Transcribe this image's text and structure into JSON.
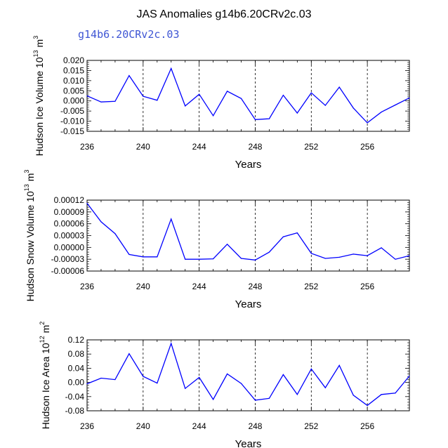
{
  "title": "JAS Anomalies g14b6.20CRv2c.03",
  "case_label": "g14b6.20CRv2c.03",
  "colors": {
    "series": "#0000ff",
    "case_label": "#3f56d4",
    "axis": "#000000"
  },
  "chart_data": [
    {
      "type": "line",
      "title": "",
      "ylabel_parts": {
        "base": "Hudson Ice Volume 10",
        "exp": "13",
        "unit": " m",
        "unit_exp": "3"
      },
      "xlabel": "Years",
      "x": [
        236,
        237,
        238,
        239,
        240,
        241,
        242,
        243,
        244,
        245,
        246,
        247,
        248,
        249,
        250,
        251,
        252,
        253,
        254,
        255,
        256,
        257,
        258,
        259
      ],
      "values": [
        0.0025,
        -0.0005,
        -0.0002,
        0.0125,
        0.0023,
        0.0003,
        0.016,
        -0.0025,
        0.0033,
        -0.0073,
        0.0048,
        0.0012,
        -0.0092,
        -0.0088,
        0.0028,
        -0.006,
        0.004,
        -0.0022,
        0.0068,
        -0.0035,
        -0.0108,
        -0.0055,
        -0.002,
        0.0015
      ],
      "xlim": [
        236,
        259
      ],
      "ylim": [
        -0.015,
        0.02
      ],
      "xticks": [
        236,
        240,
        244,
        248,
        252,
        256
      ],
      "yticks": [
        -0.015,
        -0.01,
        -0.005,
        0,
        0.005,
        0.01,
        0.015,
        0.02
      ],
      "ytick_labels": [
        "-0.015",
        "-0.010",
        "-0.005",
        "0.000",
        "0.005",
        "0.010",
        "0.015",
        "0.020"
      ],
      "vlines": [
        240,
        244,
        248,
        252,
        256
      ]
    },
    {
      "type": "line",
      "title": "",
      "ylabel_parts": {
        "base": "Hudson Snow Volume 10",
        "exp": "13",
        "unit": " m",
        "unit_exp": "3"
      },
      "xlabel": "Years",
      "x": [
        236,
        237,
        238,
        239,
        240,
        241,
        242,
        243,
        244,
        245,
        246,
        247,
        248,
        249,
        250,
        251,
        252,
        253,
        254,
        255,
        256,
        257,
        258,
        259
      ],
      "values": [
        0.000112,
        6.5e-05,
        3.5e-05,
        -1.8e-05,
        -2.4e-05,
        -2.4e-05,
        7.2e-05,
        -3e-05,
        -3e-05,
        -2.9e-05,
        8e-06,
        -2.8e-05,
        -3.2e-05,
        -1.2e-05,
        2.7e-05,
        3.7e-05,
        -1.5e-05,
        -2.8e-05,
        -2.5e-05,
        -1.7e-05,
        -2.1e-05,
        -1e-06,
        -3e-05,
        -2.1e-05
      ],
      "xlim": [
        236,
        259
      ],
      "ylim": [
        -6e-05,
        0.00012
      ],
      "xticks": [
        236,
        240,
        244,
        248,
        252,
        256
      ],
      "yticks": [
        -6e-05,
        -3e-05,
        0,
        3e-05,
        6e-05,
        9e-05,
        0.00012
      ],
      "ytick_labels": [
        "-0.00006",
        "-0.00003",
        "0.00000",
        "0.00003",
        "0.00006",
        "0.00009",
        "0.00012"
      ],
      "vlines": [
        240,
        244,
        248,
        252,
        256
      ]
    },
    {
      "type": "line",
      "title": "",
      "ylabel_parts": {
        "base": "Hudson Ice Area 10",
        "exp": "12",
        "unit": " m",
        "unit_exp": "2"
      },
      "xlabel": "Years",
      "x": [
        236,
        237,
        238,
        239,
        240,
        241,
        242,
        243,
        244,
        245,
        246,
        247,
        248,
        249,
        250,
        251,
        252,
        253,
        254,
        255,
        256,
        257,
        258,
        259
      ],
      "values": [
        -0.004,
        0.012,
        0.008,
        0.081,
        0.017,
        -0.002,
        0.11,
        -0.017,
        0.014,
        -0.048,
        0.024,
        -0.003,
        -0.05,
        -0.045,
        0.022,
        -0.034,
        0.038,
        -0.015,
        0.048,
        -0.036,
        -0.065,
        -0.034,
        -0.03,
        0.018
      ],
      "xlim": [
        236,
        259
      ],
      "ylim": [
        -0.08,
        0.12
      ],
      "xticks": [
        236,
        240,
        244,
        248,
        252,
        256
      ],
      "yticks": [
        -0.08,
        -0.04,
        0,
        0.04,
        0.08,
        0.12
      ],
      "ytick_labels": [
        "-0.08",
        "-0.04",
        "0.00",
        "0.04",
        "0.08",
        "0.12"
      ],
      "vlines": [
        240,
        244,
        248,
        252,
        256
      ]
    }
  ]
}
